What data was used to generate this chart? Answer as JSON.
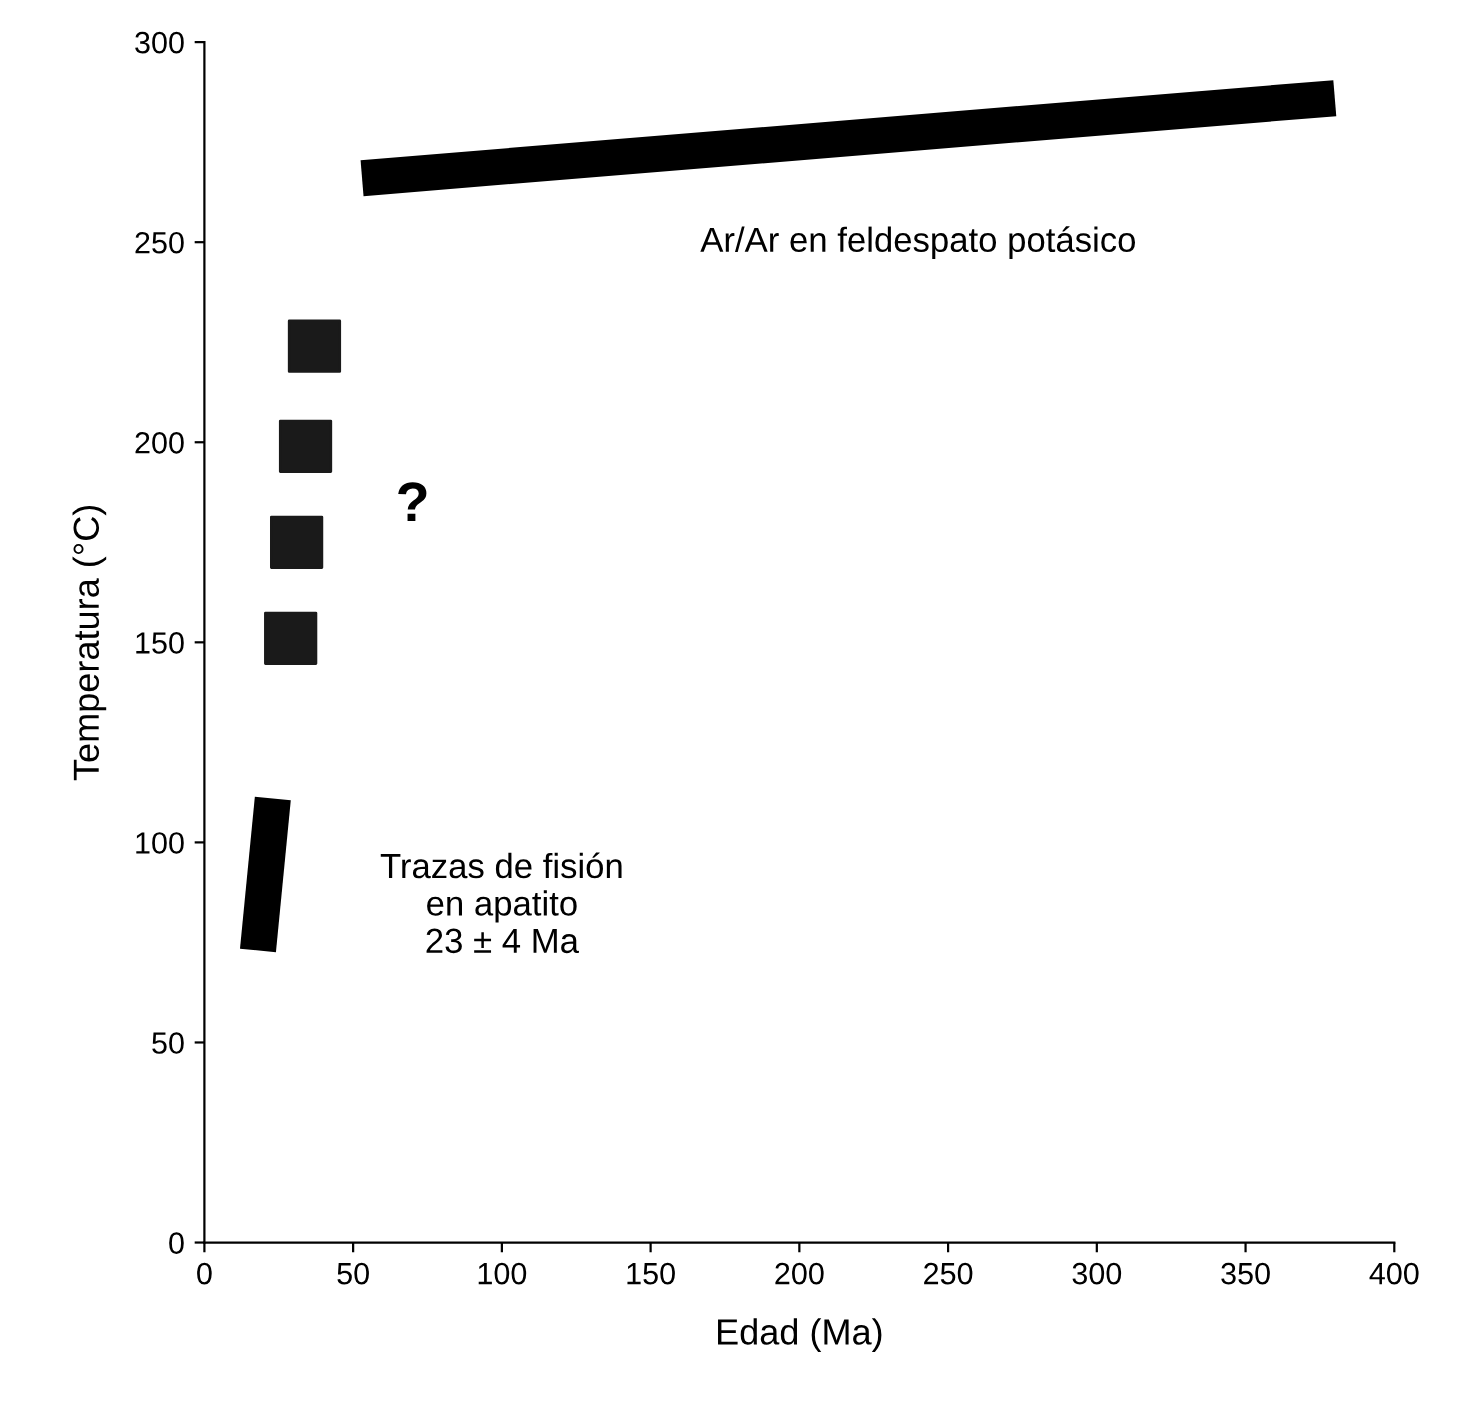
{
  "chart_data": {
    "type": "line",
    "xlabel": "Edad (Ma)",
    "ylabel": "Temperatura (°C)",
    "xlim": [
      0,
      400
    ],
    "xticks": [
      0,
      50,
      100,
      150,
      200,
      250,
      300,
      350,
      400
    ],
    "ylim": [
      0,
      300
    ],
    "yticks": [
      0,
      50,
      100,
      150,
      200,
      250,
      300
    ],
    "grid": false,
    "legend": false,
    "series": [
      {
        "color": "#000000",
        "x": [
          53,
          380
        ],
        "values": [
          266,
          286
        ],
        "marker": "none"
      },
      {
        "color": "#000000",
        "x": [
          18,
          23
        ],
        "values": [
          73,
          111
        ],
        "marker": "none"
      },
      {
        "type": "scatter",
        "color": "#1a1a1a",
        "x": [
          29,
          31,
          34,
          37
        ],
        "values": [
          151,
          175,
          199,
          224
        ],
        "marker": "square"
      }
    ],
    "annotations": [
      "Ar/Ar en feldespato potásico",
      "?",
      "Trazas de fisión\nen apatito\n23 ± 4 Ma"
    ]
  }
}
